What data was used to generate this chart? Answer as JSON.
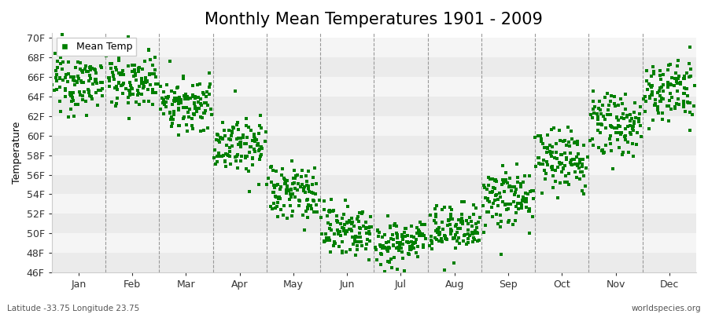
{
  "title": "Monthly Mean Temperatures 1901 - 2009",
  "ylabel": "Temperature",
  "xlabel_months": [
    "Jan",
    "Feb",
    "Mar",
    "Apr",
    "May",
    "Jun",
    "Jul",
    "Aug",
    "Sep",
    "Oct",
    "Nov",
    "Dec"
  ],
  "ylim": [
    46,
    70.5
  ],
  "yticks": [
    46,
    48,
    50,
    52,
    54,
    56,
    58,
    60,
    62,
    64,
    66,
    68,
    70
  ],
  "ytick_labels": [
    "46F",
    "48F",
    "50F",
    "52F",
    "54F",
    "56F",
    "58F",
    "60F",
    "62F",
    "64F",
    "66F",
    "68F",
    "70F"
  ],
  "marker_color": "#008000",
  "marker_size": 2.5,
  "background_color": "#ffffff",
  "stripe_color_dark": "#ebebeb",
  "stripe_color_light": "#f5f5f5",
  "grid_color": "#999999",
  "title_fontsize": 15,
  "axis_fontsize": 9,
  "legend_label": "Mean Temp",
  "footer_left": "Latitude -33.75 Longitude 23.75",
  "footer_right": "worldspecies.org",
  "n_years": 109,
  "mean_temps_F": [
    65.5,
    65.8,
    63.2,
    59.2,
    54.2,
    50.3,
    49.2,
    50.3,
    53.5,
    57.5,
    61.2,
    64.5
  ],
  "std_temps_F": [
    1.5,
    1.5,
    1.4,
    1.4,
    1.5,
    1.3,
    1.3,
    1.3,
    1.5,
    1.5,
    1.5,
    1.6
  ]
}
